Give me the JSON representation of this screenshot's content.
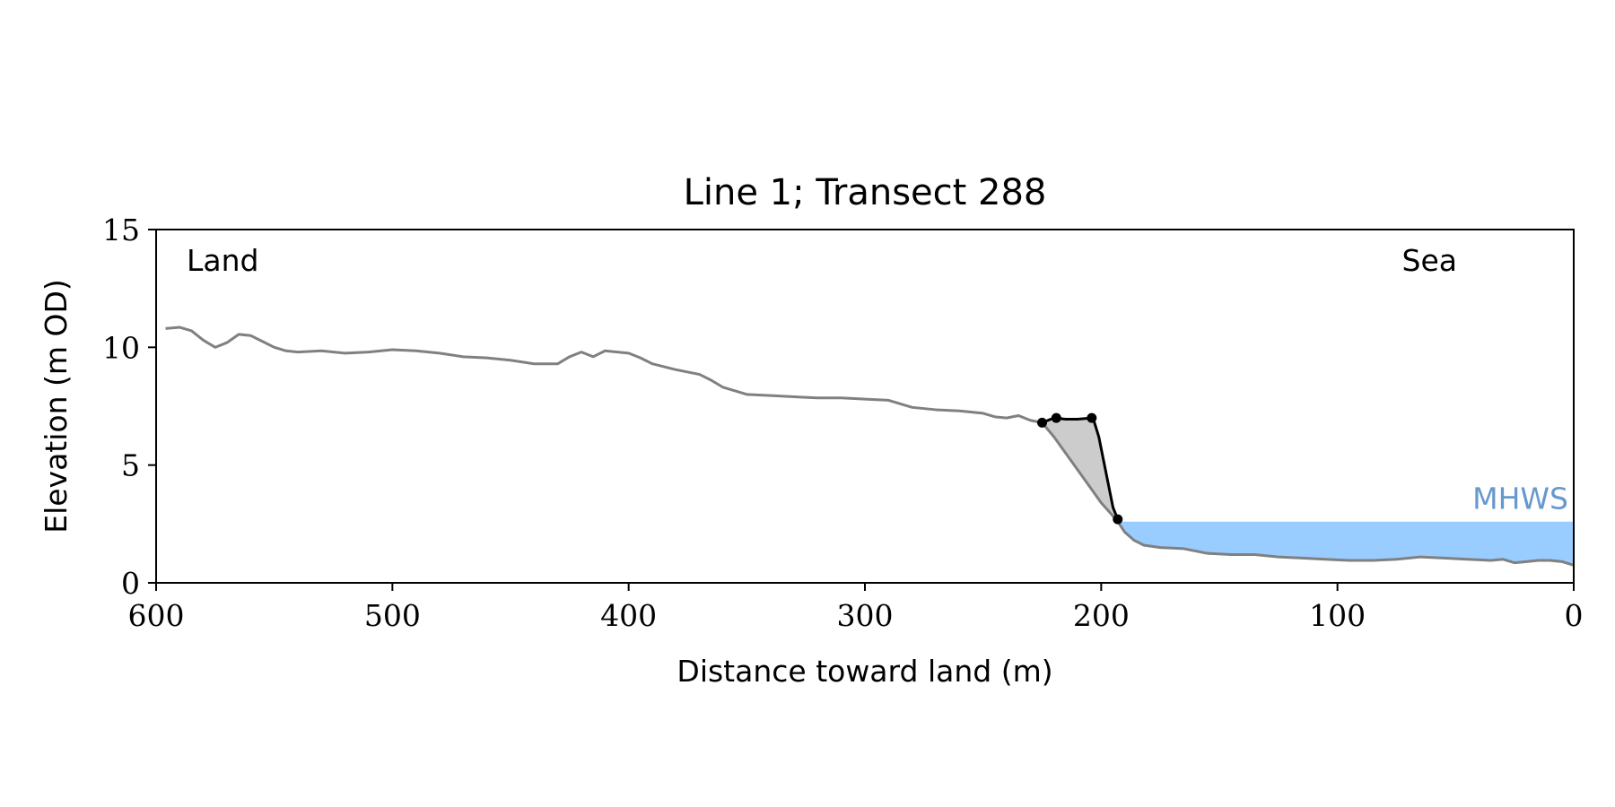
{
  "chart_data": {
    "type": "line",
    "title": "Line 1; Transect 288",
    "xlabel": "Distance toward land (m)",
    "ylabel": "Elevation (m OD)",
    "xlim": [
      600,
      0
    ],
    "ylim": [
      0,
      15
    ],
    "x_ticks": [
      600,
      500,
      400,
      300,
      200,
      100,
      0
    ],
    "y_ticks": [
      0,
      5,
      10,
      15
    ],
    "grid": false,
    "annotations": {
      "land": "Land",
      "sea": "Sea",
      "mhws": "MHWS"
    },
    "mhws_level": 2.6,
    "colors": {
      "profile": "#808080",
      "cliff": "#000000",
      "fill": "#cccccc",
      "water": "#99ccff",
      "mhws_text": "#6699cc"
    },
    "profile": [
      [
        596,
        10.8
      ],
      [
        590,
        10.85
      ],
      [
        585,
        10.7
      ],
      [
        580,
        10.3
      ],
      [
        575,
        10.0
      ],
      [
        570,
        10.2
      ],
      [
        565,
        10.55
      ],
      [
        560,
        10.5
      ],
      [
        555,
        10.25
      ],
      [
        550,
        10.0
      ],
      [
        545,
        9.85
      ],
      [
        540,
        9.8
      ],
      [
        530,
        9.85
      ],
      [
        520,
        9.75
      ],
      [
        510,
        9.8
      ],
      [
        500,
        9.9
      ],
      [
        490,
        9.85
      ],
      [
        480,
        9.75
      ],
      [
        470,
        9.6
      ],
      [
        460,
        9.55
      ],
      [
        450,
        9.45
      ],
      [
        440,
        9.3
      ],
      [
        430,
        9.3
      ],
      [
        425,
        9.6
      ],
      [
        420,
        9.8
      ],
      [
        415,
        9.6
      ],
      [
        410,
        9.85
      ],
      [
        400,
        9.75
      ],
      [
        395,
        9.55
      ],
      [
        390,
        9.3
      ],
      [
        380,
        9.05
      ],
      [
        370,
        8.85
      ],
      [
        365,
        8.6
      ],
      [
        360,
        8.3
      ],
      [
        350,
        8.0
      ],
      [
        340,
        7.95
      ],
      [
        330,
        7.9
      ],
      [
        320,
        7.85
      ],
      [
        310,
        7.85
      ],
      [
        300,
        7.8
      ],
      [
        290,
        7.75
      ],
      [
        280,
        7.45
      ],
      [
        270,
        7.35
      ],
      [
        260,
        7.3
      ],
      [
        250,
        7.2
      ],
      [
        245,
        7.05
      ],
      [
        240,
        7.0
      ],
      [
        235,
        7.1
      ],
      [
        230,
        6.9
      ],
      [
        225,
        6.8
      ],
      [
        220,
        6.2
      ],
      [
        215,
        5.5
      ],
      [
        210,
        4.8
      ],
      [
        205,
        4.1
      ],
      [
        200,
        3.4
      ],
      [
        196,
        2.95
      ],
      [
        193,
        2.6
      ],
      [
        190,
        2.15
      ],
      [
        186,
        1.8
      ],
      [
        182,
        1.6
      ],
      [
        175,
        1.5
      ],
      [
        165,
        1.45
      ],
      [
        155,
        1.25
      ],
      [
        145,
        1.2
      ],
      [
        135,
        1.2
      ],
      [
        125,
        1.1
      ],
      [
        115,
        1.05
      ],
      [
        105,
        1.0
      ],
      [
        95,
        0.95
      ],
      [
        85,
        0.95
      ],
      [
        75,
        1.0
      ],
      [
        65,
        1.1
      ],
      [
        55,
        1.05
      ],
      [
        45,
        1.0
      ],
      [
        35,
        0.95
      ],
      [
        30,
        1.0
      ],
      [
        25,
        0.85
      ],
      [
        20,
        0.9
      ],
      [
        15,
        0.95
      ],
      [
        10,
        0.95
      ],
      [
        5,
        0.9
      ],
      [
        0,
        0.75
      ]
    ],
    "cliff_line": [
      [
        225,
        6.8
      ],
      [
        220,
        7.0
      ],
      [
        215,
        6.95
      ],
      [
        210,
        6.95
      ],
      [
        204,
        7.0
      ],
      [
        203,
        6.85
      ],
      [
        201,
        6.2
      ],
      [
        199,
        5.2
      ],
      [
        197,
        4.2
      ],
      [
        195,
        3.2
      ],
      [
        193,
        2.7
      ]
    ],
    "cliff_points": [
      [
        225,
        6.8
      ],
      [
        219,
        7.0
      ],
      [
        204,
        7.0
      ],
      [
        193,
        2.7
      ]
    ]
  }
}
